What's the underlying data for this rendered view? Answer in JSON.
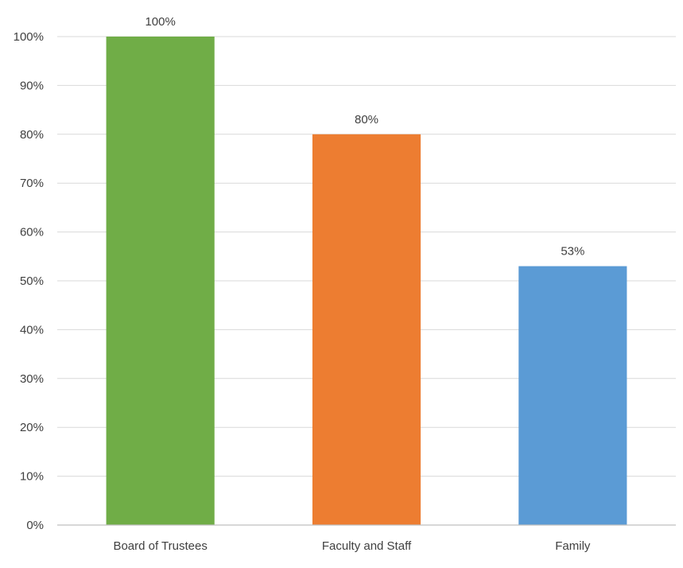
{
  "chart_data": {
    "type": "bar",
    "title": "",
    "xlabel": "",
    "ylabel": "",
    "categories": [
      "Board of Trustees",
      "Faculty and Staff",
      "Family"
    ],
    "values": [
      100,
      80,
      53
    ],
    "data_labels": [
      "100%",
      "80%",
      "53%"
    ],
    "colors": [
      "#70AD47",
      "#ED7D31",
      "#5B9BD5"
    ],
    "ylim": [
      0,
      100
    ],
    "yticks": [
      0,
      10,
      20,
      30,
      40,
      50,
      60,
      70,
      80,
      90,
      100
    ],
    "ytick_labels": [
      "0%",
      "10%",
      "20%",
      "30%",
      "40%",
      "50%",
      "60%",
      "70%",
      "80%",
      "90%",
      "100%"
    ],
    "grid": true,
    "legend": "none"
  }
}
